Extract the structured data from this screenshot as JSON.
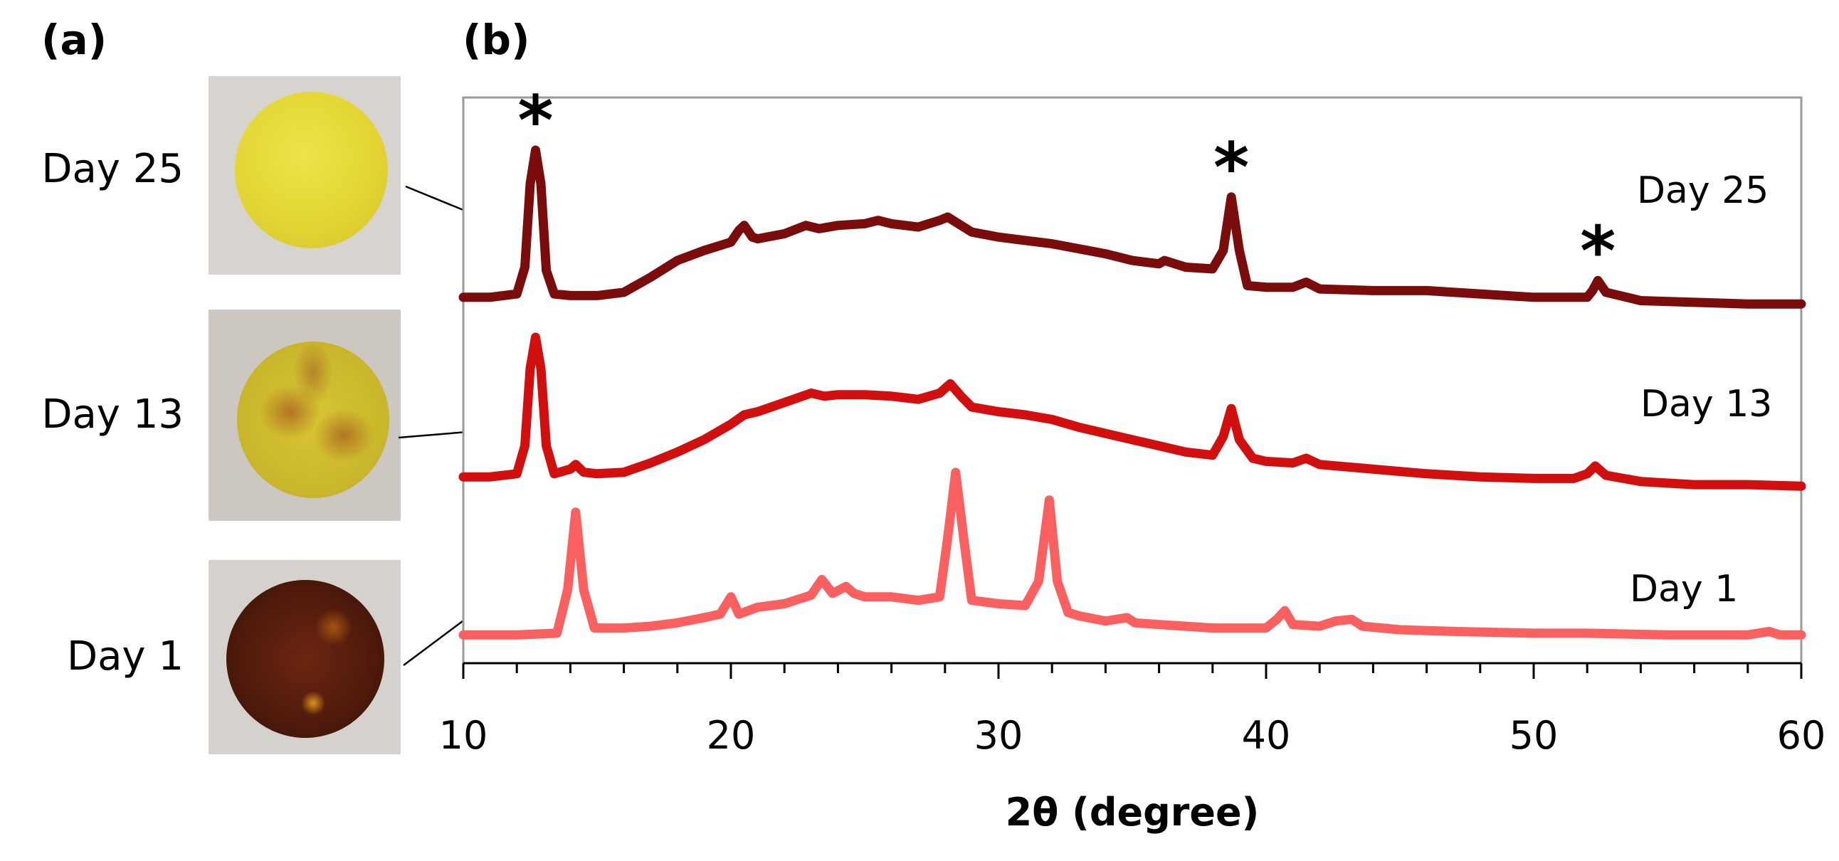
{
  "panel_labels": {
    "a": "(a)",
    "b": "(b)"
  },
  "samples": [
    {
      "label": "Day 25",
      "disc_color": "#e3d634"
    },
    {
      "label": "Day 13",
      "disc_color": "#c9b52b"
    },
    {
      "label": "Day 1",
      "disc_color": "#4f1a0b"
    }
  ],
  "chart_data": {
    "type": "line",
    "title": "",
    "xlabel": "2θ (degree)",
    "ylabel": "",
    "xlim": [
      10,
      60
    ],
    "x_ticks": [
      10,
      20,
      30,
      40,
      50,
      60
    ],
    "y_ticks": [],
    "grid": false,
    "marker_symbol": "*",
    "series": [
      {
        "name": "Day 25",
        "color": "#7a0c0c",
        "points": [
          [
            10,
            0.12
          ],
          [
            11,
            0.12
          ],
          [
            12,
            0.14
          ],
          [
            12.3,
            0.3
          ],
          [
            12.5,
            0.8
          ],
          [
            12.7,
            1.0
          ],
          [
            12.9,
            0.8
          ],
          [
            13.1,
            0.28
          ],
          [
            13.4,
            0.14
          ],
          [
            14,
            0.13
          ],
          [
            15,
            0.13
          ],
          [
            16,
            0.15
          ],
          [
            17,
            0.24
          ],
          [
            18,
            0.34
          ],
          [
            19,
            0.4
          ],
          [
            20,
            0.45
          ],
          [
            20.3,
            0.52
          ],
          [
            20.5,
            0.55
          ],
          [
            20.8,
            0.48
          ],
          [
            21,
            0.47
          ],
          [
            22,
            0.5
          ],
          [
            22.8,
            0.55
          ],
          [
            23.3,
            0.53
          ],
          [
            24,
            0.55
          ],
          [
            25,
            0.56
          ],
          [
            25.5,
            0.58
          ],
          [
            26,
            0.56
          ],
          [
            27,
            0.54
          ],
          [
            27.8,
            0.58
          ],
          [
            28.1,
            0.6
          ],
          [
            28.5,
            0.56
          ],
          [
            29,
            0.51
          ],
          [
            30,
            0.48
          ],
          [
            31,
            0.46
          ],
          [
            32,
            0.44
          ],
          [
            33,
            0.41
          ],
          [
            34,
            0.38
          ],
          [
            35,
            0.34
          ],
          [
            36,
            0.32
          ],
          [
            36.2,
            0.34
          ],
          [
            37,
            0.3
          ],
          [
            38,
            0.29
          ],
          [
            38.4,
            0.4
          ],
          [
            38.7,
            0.72
          ],
          [
            39,
            0.4
          ],
          [
            39.3,
            0.19
          ],
          [
            40,
            0.18
          ],
          [
            41,
            0.18
          ],
          [
            41.5,
            0.21
          ],
          [
            42,
            0.17
          ],
          [
            44,
            0.16
          ],
          [
            46,
            0.16
          ],
          [
            48,
            0.14
          ],
          [
            50,
            0.12
          ],
          [
            52,
            0.12
          ],
          [
            52.2,
            0.16
          ],
          [
            52.4,
            0.22
          ],
          [
            52.7,
            0.15
          ],
          [
            54,
            0.1
          ],
          [
            56,
            0.09
          ],
          [
            58,
            0.08
          ],
          [
            60,
            0.08
          ]
        ],
        "markers_at": [
          12.7,
          38.7,
          52.4
        ]
      },
      {
        "name": "Day 13",
        "color": "#d20f0f",
        "points": [
          [
            10,
            0.1
          ],
          [
            11,
            0.1
          ],
          [
            12,
            0.12
          ],
          [
            12.3,
            0.3
          ],
          [
            12.5,
            0.8
          ],
          [
            12.7,
            1.0
          ],
          [
            12.9,
            0.8
          ],
          [
            13.1,
            0.3
          ],
          [
            13.4,
            0.12
          ],
          [
            14,
            0.15
          ],
          [
            14.2,
            0.18
          ],
          [
            14.5,
            0.13
          ],
          [
            15,
            0.12
          ],
          [
            16,
            0.13
          ],
          [
            17,
            0.19
          ],
          [
            18,
            0.26
          ],
          [
            19,
            0.34
          ],
          [
            20,
            0.44
          ],
          [
            20.5,
            0.5
          ],
          [
            21,
            0.52
          ],
          [
            22,
            0.58
          ],
          [
            23,
            0.64
          ],
          [
            23.5,
            0.62
          ],
          [
            24,
            0.63
          ],
          [
            25,
            0.63
          ],
          [
            26,
            0.62
          ],
          [
            27,
            0.6
          ],
          [
            27.8,
            0.64
          ],
          [
            28.2,
            0.7
          ],
          [
            28.6,
            0.62
          ],
          [
            29,
            0.55
          ],
          [
            30,
            0.52
          ],
          [
            31,
            0.5
          ],
          [
            32,
            0.47
          ],
          [
            33,
            0.42
          ],
          [
            34,
            0.38
          ],
          [
            35,
            0.34
          ],
          [
            36,
            0.3
          ],
          [
            37,
            0.26
          ],
          [
            38,
            0.24
          ],
          [
            38.4,
            0.36
          ],
          [
            38.7,
            0.54
          ],
          [
            39,
            0.34
          ],
          [
            39.5,
            0.22
          ],
          [
            40,
            0.2
          ],
          [
            41,
            0.19
          ],
          [
            41.5,
            0.22
          ],
          [
            42,
            0.18
          ],
          [
            44,
            0.15
          ],
          [
            46,
            0.12
          ],
          [
            48,
            0.1
          ],
          [
            50,
            0.09
          ],
          [
            51.5,
            0.09
          ],
          [
            52,
            0.12
          ],
          [
            52.3,
            0.17
          ],
          [
            52.7,
            0.11
          ],
          [
            54,
            0.07
          ],
          [
            56,
            0.05
          ],
          [
            58,
            0.05
          ],
          [
            60,
            0.04
          ]
        ]
      },
      {
        "name": "Day 1",
        "color": "#fb6060",
        "points": [
          [
            10,
            0.04
          ],
          [
            12,
            0.04
          ],
          [
            13.5,
            0.05
          ],
          [
            13.9,
            0.3
          ],
          [
            14.2,
            0.75
          ],
          [
            14.5,
            0.3
          ],
          [
            14.9,
            0.08
          ],
          [
            16,
            0.08
          ],
          [
            17,
            0.09
          ],
          [
            18,
            0.11
          ],
          [
            19,
            0.14
          ],
          [
            19.6,
            0.16
          ],
          [
            20,
            0.26
          ],
          [
            20.3,
            0.16
          ],
          [
            21,
            0.2
          ],
          [
            22,
            0.22
          ],
          [
            23,
            0.27
          ],
          [
            23.4,
            0.36
          ],
          [
            23.8,
            0.28
          ],
          [
            24.3,
            0.32
          ],
          [
            24.6,
            0.28
          ],
          [
            25,
            0.26
          ],
          [
            26,
            0.26
          ],
          [
            27,
            0.24
          ],
          [
            27.8,
            0.26
          ],
          [
            28.1,
            0.6
          ],
          [
            28.4,
            0.98
          ],
          [
            28.7,
            0.6
          ],
          [
            29,
            0.24
          ],
          [
            30,
            0.22
          ],
          [
            31,
            0.21
          ],
          [
            31.5,
            0.35
          ],
          [
            31.9,
            0.82
          ],
          [
            32.2,
            0.35
          ],
          [
            32.6,
            0.17
          ],
          [
            33,
            0.15
          ],
          [
            34,
            0.12
          ],
          [
            34.8,
            0.14
          ],
          [
            35.1,
            0.11
          ],
          [
            36,
            0.1
          ],
          [
            38,
            0.08
          ],
          [
            39,
            0.08
          ],
          [
            40,
            0.08
          ],
          [
            40.4,
            0.13
          ],
          [
            40.7,
            0.18
          ],
          [
            41,
            0.1
          ],
          [
            42,
            0.09
          ],
          [
            42.6,
            0.12
          ],
          [
            43.2,
            0.13
          ],
          [
            43.6,
            0.09
          ],
          [
            45,
            0.07
          ],
          [
            47,
            0.06
          ],
          [
            50,
            0.05
          ],
          [
            52,
            0.05
          ],
          [
            55,
            0.04
          ],
          [
            58,
            0.04
          ],
          [
            58.8,
            0.06
          ],
          [
            59.2,
            0.04
          ],
          [
            60,
            0.04
          ]
        ]
      }
    ]
  }
}
